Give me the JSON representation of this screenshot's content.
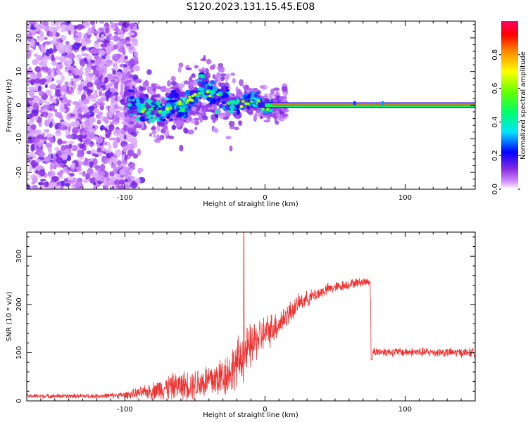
{
  "title": "S120.2023.131.15.45.E08",
  "chart_data": [
    {
      "type": "heatmap",
      "xlabel": "Height of straight line (km)",
      "ylabel": "Frequency (Hz)",
      "xlim": [
        -170,
        150
      ],
      "ylim": [
        -25,
        25
      ],
      "xticks": [
        -100,
        0,
        100
      ],
      "yticks": [
        -20,
        -10,
        0,
        10,
        20
      ],
      "colorbar": {
        "label": "Normalized spectral amplitude",
        "range": [
          0,
          1
        ],
        "ticks": [
          0.0,
          0.2,
          0.4,
          0.6,
          0.8
        ]
      },
      "carrier_track": {
        "frequency": 0,
        "x_start": 5,
        "x_end": 150,
        "amplitude": 0.85
      },
      "ridge": [
        {
          "x": -95,
          "f": 0.5
        },
        {
          "x": -88,
          "f": -1
        },
        {
          "x": -80,
          "f": -1.5
        },
        {
          "x": -72,
          "f": -2
        },
        {
          "x": -65,
          "f": 1
        },
        {
          "x": -58,
          "f": -0.5
        },
        {
          "x": -50,
          "f": 3
        },
        {
          "x": -44,
          "f": 6
        },
        {
          "x": -40,
          "f": 4
        },
        {
          "x": -35,
          "f": 2
        },
        {
          "x": -30,
          "f": 4
        },
        {
          "x": -25,
          "f": 0.5
        },
        {
          "x": -20,
          "f": 0
        },
        {
          "x": -15,
          "f": 1
        },
        {
          "x": -10,
          "f": 1.5
        },
        {
          "x": -5,
          "f": 1
        },
        {
          "x": 0,
          "f": -0.5
        },
        {
          "x": 5,
          "f": 0
        }
      ]
    },
    {
      "type": "line",
      "xlabel": "Height of straight line (km)",
      "ylabel": "SNR (10 * v/v)",
      "xlim": [
        -170,
        150
      ],
      "ylim": [
        0,
        350
      ],
      "xticks": [
        -100,
        0,
        100
      ],
      "yticks": [
        0,
        100,
        200,
        300
      ],
      "color": "#ee3333",
      "series": [
        {
          "envelope": [
            {
              "x": -170,
              "mean": 10,
              "noise": 4
            },
            {
              "x": -120,
              "mean": 10,
              "noise": 4
            },
            {
              "x": -100,
              "mean": 12,
              "noise": 6
            },
            {
              "x": -85,
              "mean": 18,
              "noise": 12
            },
            {
              "x": -70,
              "mean": 28,
              "noise": 22
            },
            {
              "x": -50,
              "mean": 35,
              "noise": 28
            },
            {
              "x": -35,
              "mean": 45,
              "noise": 35
            },
            {
              "x": -25,
              "mean": 60,
              "noise": 40
            },
            {
              "x": -15,
              "mean": 95,
              "noise": 45
            },
            {
              "x": -5,
              "mean": 130,
              "noise": 35
            },
            {
              "x": 10,
              "mean": 160,
              "noise": 25
            },
            {
              "x": 25,
              "mean": 205,
              "noise": 15
            },
            {
              "x": 45,
              "mean": 232,
              "noise": 10
            },
            {
              "x": 65,
              "mean": 245,
              "noise": 8
            },
            {
              "x": 75,
              "mean": 248,
              "noise": 8
            },
            {
              "x": 76,
              "mean": 102,
              "noise": 8
            },
            {
              "x": 150,
              "mean": 100,
              "noise": 8
            }
          ],
          "spike": {
            "x": -15,
            "y": 350
          }
        }
      ]
    }
  ]
}
